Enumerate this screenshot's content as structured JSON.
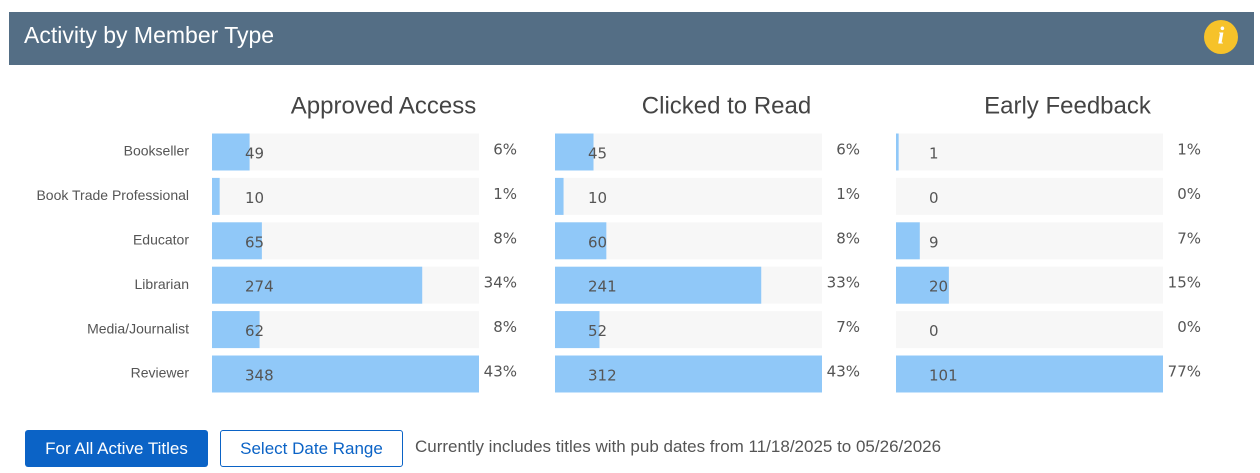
{
  "header": {
    "title": "Activity by Member Type"
  },
  "categories": [
    "Bookseller",
    "Book Trade Professional",
    "Educator",
    "Librarian",
    "Media/Journalist",
    "Reviewer"
  ],
  "panels": [
    {
      "title": "Approved Access",
      "values": [
        49,
        10,
        65,
        274,
        62,
        348
      ],
      "percents": [
        "6%",
        "1%",
        "8%",
        "34%",
        "8%",
        "43%"
      ]
    },
    {
      "title": "Clicked to Read",
      "values": [
        45,
        10,
        60,
        241,
        52,
        312
      ],
      "percents": [
        "6%",
        "1%",
        "8%",
        "33%",
        "7%",
        "43%"
      ]
    },
    {
      "title": "Early Feedback",
      "values": [
        1,
        0,
        9,
        20,
        0,
        101
      ],
      "percents": [
        "1%",
        "0%",
        "7%",
        "15%",
        "0%",
        "77%"
      ]
    }
  ],
  "footer": {
    "buttons": [
      "For All Active Titles",
      "Select Date Range"
    ],
    "note": "Currently includes titles with pub dates from 11/18/2025 to 05/26/2026"
  }
}
